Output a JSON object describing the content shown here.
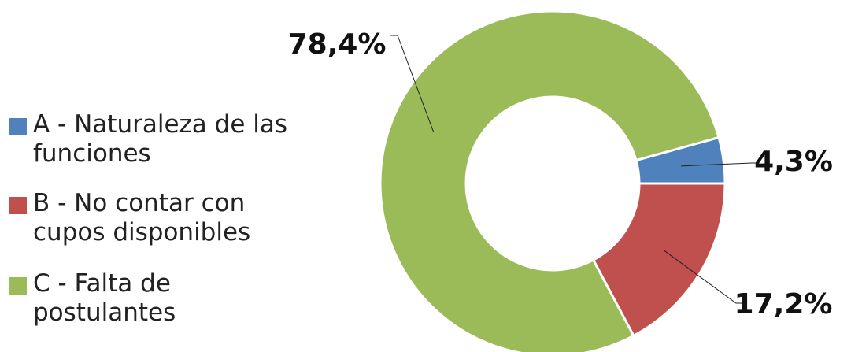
{
  "chart_data": {
    "type": "donut",
    "categories": [
      "A - Naturaleza de las funciones",
      "B - No contar con cupos disponibles",
      "C - Falta de postulantes"
    ],
    "values": [
      4.3,
      17.2,
      78.4
    ],
    "value_labels": [
      "4,3%",
      "17,2%",
      "78,4%"
    ],
    "colors": [
      "#4f81bd",
      "#c0504d",
      "#9bbb59"
    ],
    "legend": "left"
  }
}
